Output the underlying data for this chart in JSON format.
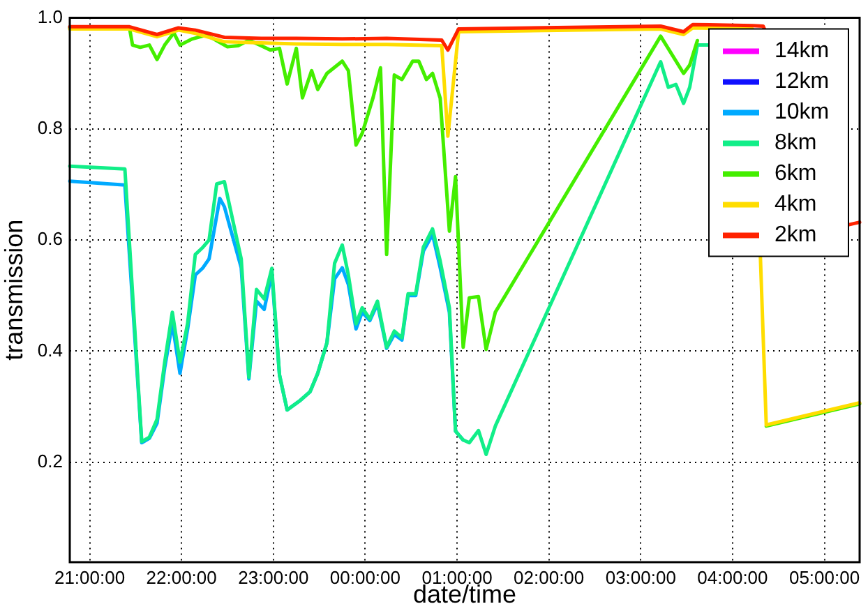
{
  "chart_data": {
    "type": "line",
    "xlabel": "date/time",
    "ylabel": "transmission",
    "xlim": [
      "--01-01T20:47",
      "--01-02T05:23"
    ],
    "xticks": [
      {
        "value": "--01-01T21:00",
        "label": "21:00:00"
      },
      {
        "value": "--01-01T22:00",
        "label": "22:00:00"
      },
      {
        "value": "--01-01T23:00",
        "label": "23:00:00"
      },
      {
        "value": "--01-02T00:00",
        "label": "00:00:00"
      },
      {
        "value": "--01-02T01:00",
        "label": "01:00:00"
      },
      {
        "value": "--01-02T02:00",
        "label": "02:00:00"
      },
      {
        "value": "--01-02T03:00",
        "label": "03:00:00"
      },
      {
        "value": "--01-02T04:00",
        "label": "04:00:00"
      },
      {
        "value": "--01-02T05:00",
        "label": "05:00:00"
      }
    ],
    "ylim": [
      0.02,
      1
    ],
    "yticks": [
      0.2,
      0.4,
      0.6,
      0.8,
      {
        "value": 1,
        "label": "1.0"
      }
    ],
    "grid": true,
    "legend": "top right",
    "marker": "none",
    "line_style": "solid",
    "series": [
      {
        "name": "14km",
        "color": "#ff00ff"
      },
      {
        "name": "12km",
        "color": "#1010ff"
      },
      {
        "name": "10km",
        "color": "#00aaff",
        "x": [
          "--01-01T20:47",
          "--01-01T21:23",
          "--01-01T21:34",
          "--01-01T21:39",
          "--01-01T21:44",
          "--01-01T21:49",
          "--01-01T21:54",
          "--01-01T21:59",
          "--01-01T22:04",
          "--01-01T22:09",
          "--01-01T22:14",
          "--01-01T22:18",
          "--01-01T22:25",
          "--01-01T22:28",
          "--01-01T22:34",
          "--01-01T22:39",
          "--01-01T22:44",
          "--01-01T22:49",
          "--01-01T22:54",
          "--01-01T22:59",
          "--01-01T23:04",
          "--01-01T23:09",
          "--01-01T23:17",
          "--01-01T23:24",
          "--01-01T23:29",
          "--01-01T23:35",
          "--01-01T23:40",
          "--01-01T23:45",
          "--01-01T23:49",
          "--01-01T23:54",
          "--01-01T23:58",
          "--01-02T00:03",
          "--01-02T00:08",
          "--01-02T00:14",
          "--01-02T00:19",
          "--01-02T00:24",
          "--01-02T00:28",
          "--01-02T00:33",
          "--01-02T00:38",
          "--01-02T00:44",
          "--01-02T00:49",
          "--01-02T00:55",
          "--01-02T00:59",
          "--01-02T01:04"
        ],
        "values": [
          0.706,
          0.699,
          0.235,
          0.243,
          0.27,
          0.37,
          0.45,
          0.36,
          0.44,
          0.537,
          0.55,
          0.566,
          0.675,
          0.66,
          0.6,
          0.55,
          0.35,
          0.49,
          0.475,
          0.54,
          0.357,
          0.294,
          0.31,
          0.327,
          0.36,
          0.415,
          0.53,
          0.55,
          0.52,
          0.44,
          0.47,
          0.455,
          0.485,
          0.405,
          0.43,
          0.42,
          0.5,
          0.5,
          0.58,
          0.61,
          0.55,
          0.47,
          0.256,
          0.24
        ]
      },
      {
        "name": "8km",
        "color": "#11ee88",
        "x": [
          "--01-01T20:47",
          "--01-01T21:23",
          "--01-01T21:34",
          "--01-01T21:39",
          "--01-01T21:44",
          "--01-01T21:49",
          "--01-01T21:54",
          "--01-01T21:59",
          "--01-01T22:04",
          "--01-01T22:09",
          "--01-01T22:14",
          "--01-01T22:18",
          "--01-01T22:23",
          "--01-01T22:28",
          "--01-01T22:34",
          "--01-01T22:39",
          "--01-01T22:44",
          "--01-01T22:49",
          "--01-01T22:54",
          "--01-01T22:59",
          "--01-01T23:04",
          "--01-01T23:09",
          "--01-01T23:17",
          "--01-01T23:24",
          "--01-01T23:29",
          "--01-01T23:35",
          "--01-01T23:40",
          "--01-01T23:45",
          "--01-01T23:49",
          "--01-01T23:54",
          "--01-01T23:58",
          "--01-02T00:03",
          "--01-02T00:08",
          "--01-02T00:14",
          "--01-02T00:19",
          "--01-02T00:24",
          "--01-02T00:28",
          "--01-02T00:33",
          "--01-02T00:38",
          "--01-02T00:44",
          "--01-02T00:49",
          "--01-02T00:55",
          "--01-02T00:59",
          "--01-02T01:04",
          "--01-02T01:08",
          "--01-02T01:14",
          "--01-02T01:19",
          "--01-02T01:25",
          "--01-02T03:13",
          "--01-02T03:18",
          "--01-02T03:23",
          "--01-02T03:28",
          "--01-02T03:32",
          "--01-02T03:37",
          "--01-02T03:44"
        ],
        "values": [
          0.733,
          0.728,
          0.237,
          0.245,
          0.277,
          0.38,
          0.47,
          0.38,
          0.45,
          0.574,
          0.587,
          0.6,
          0.701,
          0.705,
          0.629,
          0.566,
          0.353,
          0.511,
          0.494,
          0.549,
          0.357,
          0.294,
          0.31,
          0.327,
          0.36,
          0.415,
          0.558,
          0.591,
          0.537,
          0.449,
          0.478,
          0.458,
          0.49,
          0.407,
          0.436,
          0.424,
          0.503,
          0.503,
          0.587,
          0.62,
          0.562,
          0.478,
          0.256,
          0.24,
          0.235,
          0.257,
          0.214,
          0.265,
          0.921,
          0.875,
          0.88,
          0.846,
          0.875,
          0.951,
          0.951
        ]
      },
      {
        "name": "6km",
        "color": "#44ee00",
        "x": [
          "--01-01T20:47",
          "--01-01T21:26",
          "--01-01T21:28",
          "--01-01T21:33",
          "--01-01T21:39",
          "--01-01T21:44",
          "--01-01T21:49",
          "--01-01T21:55",
          "--01-01T21:59",
          "--01-01T22:07",
          "--01-01T22:16",
          "--01-01T22:21",
          "--01-01T22:30",
          "--01-01T22:37",
          "--01-01T22:44",
          "--01-01T22:52",
          "--01-01T22:58",
          "--01-01T23:04",
          "--01-01T23:09",
          "--01-01T23:15",
          "--01-01T23:19",
          "--01-01T23:25",
          "--01-01T23:29",
          "--01-01T23:35",
          "--01-01T23:45",
          "--01-01T23:49",
          "--01-01T23:54",
          "--01-01T23:58",
          "--01-02T00:05",
          "--01-02T00:10",
          "--01-02T00:14",
          "--01-02T00:19",
          "--01-02T00:24",
          "--01-02T00:31",
          "--01-02T00:35",
          "--01-02T00:40",
          "--01-02T00:44",
          "--01-02T00:49",
          "--01-02T00:55",
          "--01-02T00:59",
          "--01-02T01:04",
          "--01-02T01:08",
          "--01-02T01:14",
          "--01-02T01:19",
          "--01-02T01:25",
          "--01-02T03:13",
          "--01-02T03:28",
          "--01-02T03:32",
          "--01-02T03:37",
          "--01-02T03:44",
          "--01-02T04:20",
          "--01-02T04:22",
          "--01-02T05:23"
        ],
        "values": [
          0.982,
          0.982,
          0.951,
          0.947,
          0.951,
          0.925,
          0.951,
          0.973,
          0.951,
          0.962,
          0.969,
          0.962,
          0.948,
          0.95,
          0.96,
          0.95,
          0.942,
          0.945,
          0.881,
          0.945,
          0.856,
          0.905,
          0.871,
          0.9,
          0.922,
          0.905,
          0.771,
          0.792,
          0.855,
          0.91,
          0.574,
          0.897,
          0.889,
          0.922,
          0.922,
          0.889,
          0.9,
          0.855,
          0.616,
          0.714,
          0.407,
          0.496,
          0.498,
          0.403,
          0.47,
          0.967,
          0.9,
          0.915,
          0.959,
          null,
          null,
          0.265,
          0.305
        ]
      },
      {
        "name": "4km",
        "color": "#ffdd00",
        "x": [
          "--01-01T20:47",
          "--01-01T21:26",
          "--01-01T21:44",
          "--01-01T21:58",
          "--01-01T22:09",
          "--01-01T22:28",
          "--01-01T22:52",
          "--01-01T23:15",
          "--01-01T23:45",
          "--01-02T00:14",
          "--01-02T00:50",
          "--01-02T00:54",
          "--01-02T01:01",
          "--01-02T03:13",
          "--01-02T03:28",
          "--01-02T03:34",
          "--01-02T04:13",
          "--01-02T04:22",
          "--01-02T05:23"
        ],
        "values": [
          0.98,
          0.98,
          0.966,
          0.978,
          0.972,
          0.957,
          0.955,
          0.953,
          0.952,
          0.952,
          0.95,
          0.787,
          0.975,
          0.98,
          0.97,
          0.982,
          0.98,
          0.267,
          0.307
        ]
      },
      {
        "name": "2km",
        "color": "#ff2200",
        "x": [
          "--01-01T20:47",
          "--01-01T21:26",
          "--01-01T21:44",
          "--01-01T21:58",
          "--01-01T22:09",
          "--01-01T22:28",
          "--01-01T22:52",
          "--01-01T23:15",
          "--01-01T23:45",
          "--01-02T00:14",
          "--01-02T00:50",
          "--01-02T00:54",
          "--01-02T01:01",
          "--01-02T03:13",
          "--01-02T03:28",
          "--01-02T03:34",
          "--01-02T04:13",
          "--01-02T04:20",
          "--01-02T05:15",
          "--01-02T05:23"
        ],
        "values": [
          0.984,
          0.984,
          0.97,
          0.982,
          0.978,
          0.965,
          0.963,
          0.963,
          0.962,
          0.963,
          0.96,
          0.942,
          0.98,
          0.985,
          0.975,
          0.988,
          0.986,
          0.985,
          0.627,
          0.632
        ]
      }
    ]
  }
}
